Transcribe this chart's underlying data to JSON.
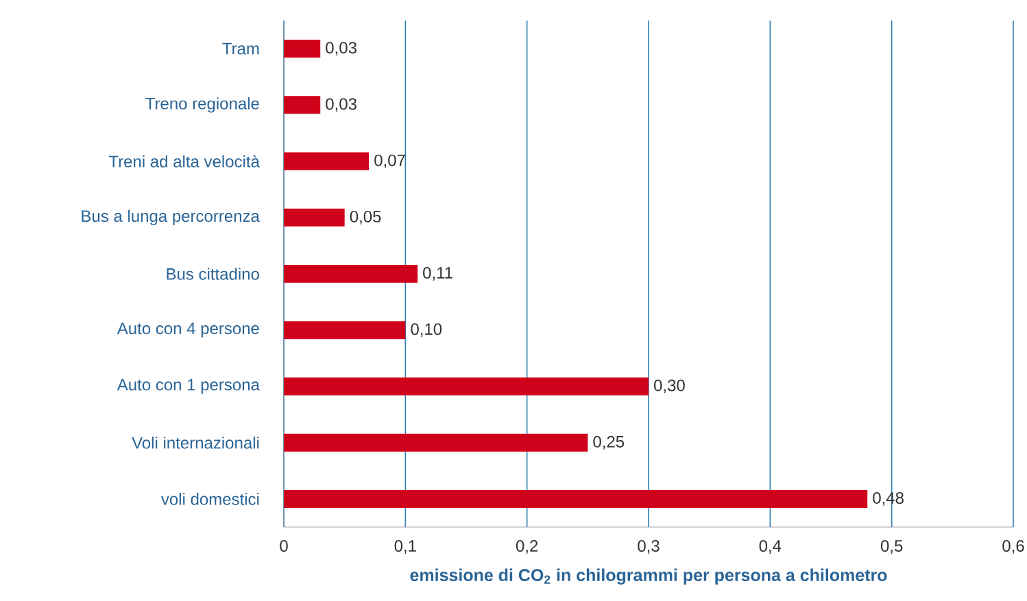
{
  "chart_data": {
    "type": "bar",
    "orientation": "horizontal",
    "xlabel": "emissione di CO$_{2}$ in chilogrammi per persona a chilometro",
    "categories": [
      "Tram",
      "Treno regionale",
      "Treni ad alta velocità",
      "Bus a lunga percorrenza",
      "Bus cittadino",
      "Auto con 4 persone",
      "Auto con 1 persona",
      "Voli internazionali",
      "voli domestici"
    ],
    "values": [
      0.03,
      0.03,
      0.07,
      0.05,
      0.11,
      0.1,
      0.3,
      0.25,
      0.48
    ],
    "value_labels": [
      "0,03",
      "0,03",
      "0,07",
      "0,05",
      "0,11",
      "0,10",
      "0,30",
      "0,25",
      "0,48"
    ],
    "color": "#d0021b",
    "xlim": [
      0,
      0.6
    ],
    "xticks": [
      0,
      {
        "value": 0.1,
        "label": "0,1"
      },
      {
        "value": 0.2,
        "label": "0,2"
      },
      {
        "value": 0.3,
        "label": "0,3"
      },
      {
        "value": 0.4,
        "label": "0,4"
      },
      {
        "value": 0.5,
        "label": "0,5"
      },
      {
        "value": 0.6,
        "label": "0,6"
      }
    ],
    "grid": "x"
  }
}
